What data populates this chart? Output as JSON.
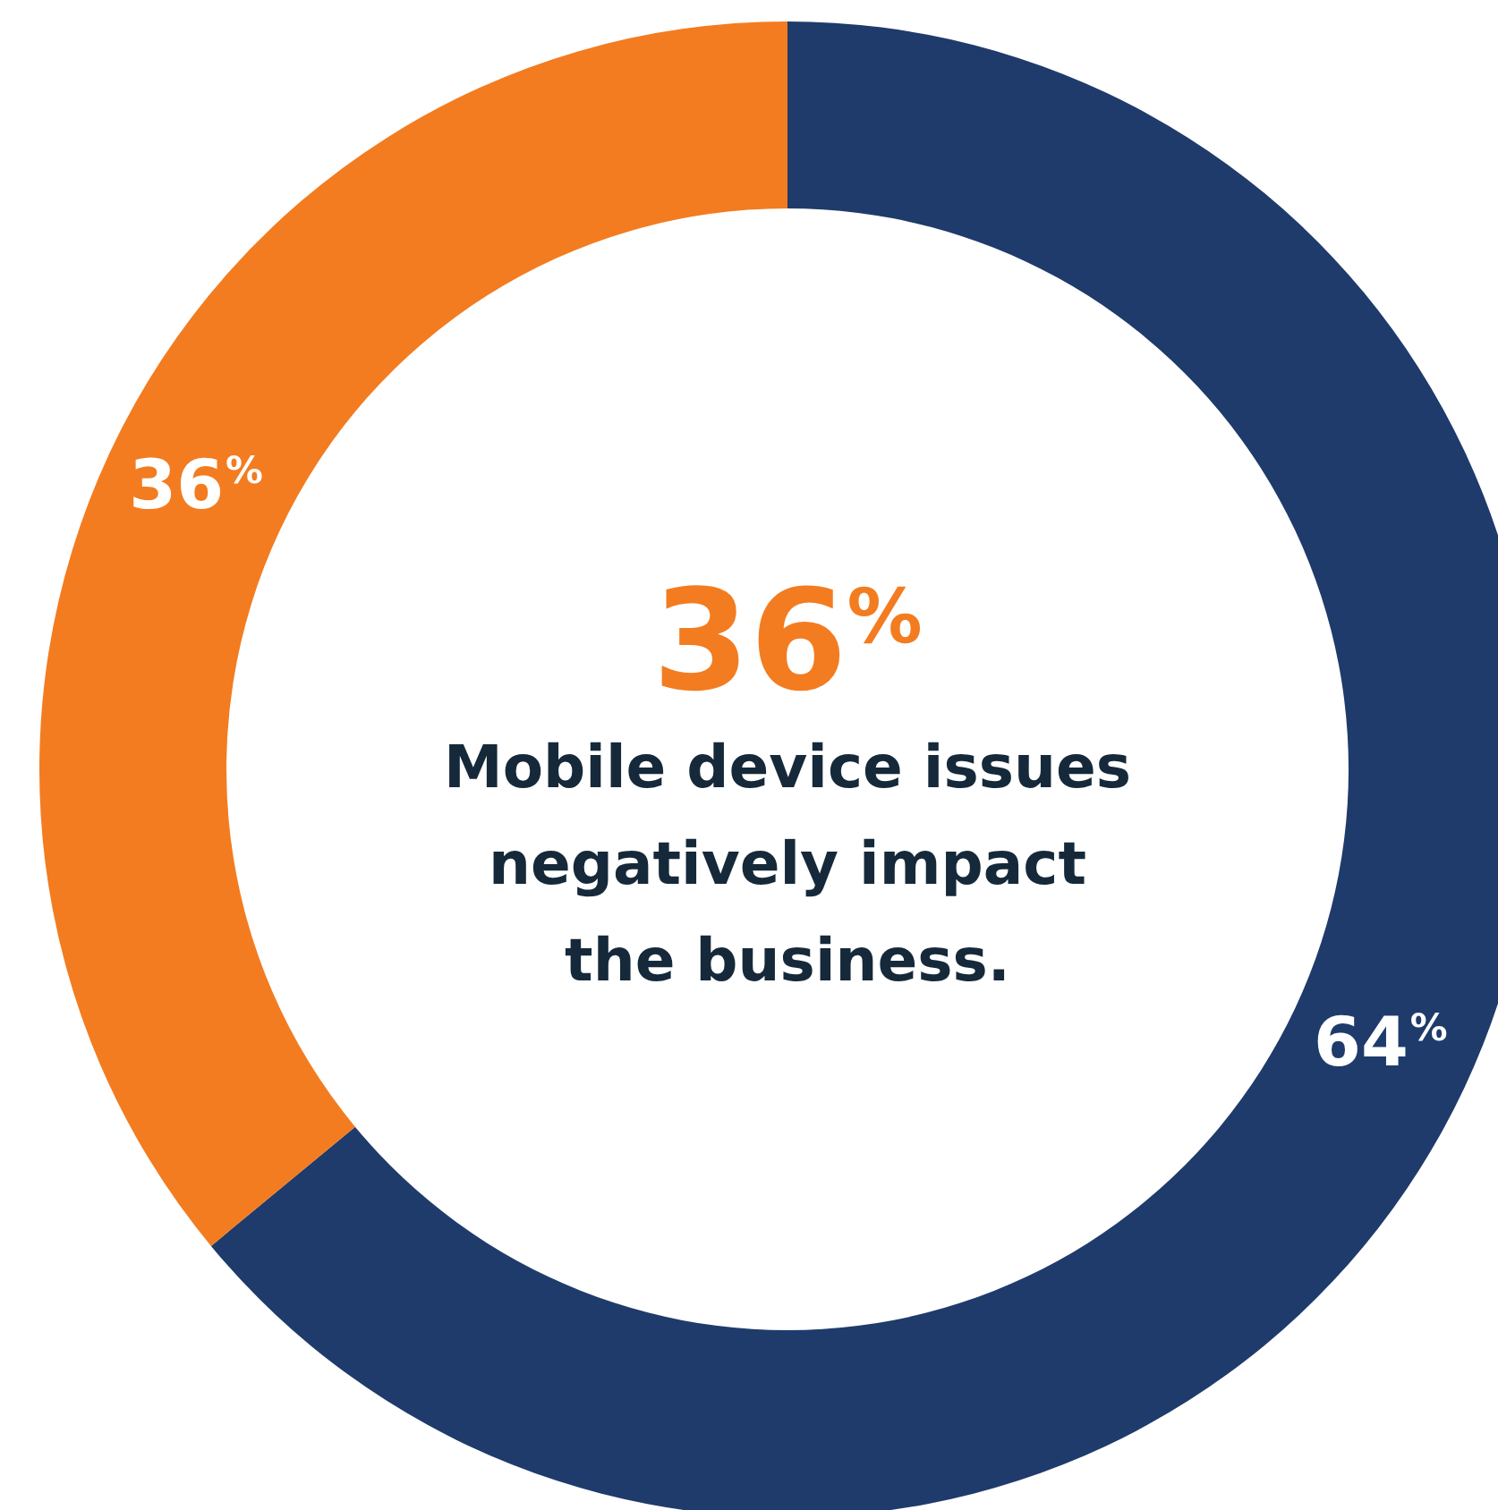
{
  "chart_data": {
    "type": "donut",
    "categories": [
      null,
      null
    ],
    "values": [
      64,
      36
    ],
    "colors": [
      "#1f3b6b",
      "#f37c20"
    ],
    "value_labels": [
      "64$^{%}$",
      "36$^{%}$"
    ],
    "annotations": [
      "36$^{%}$",
      "Mobile device issues negatively impact the business."
    ]
  }
}
